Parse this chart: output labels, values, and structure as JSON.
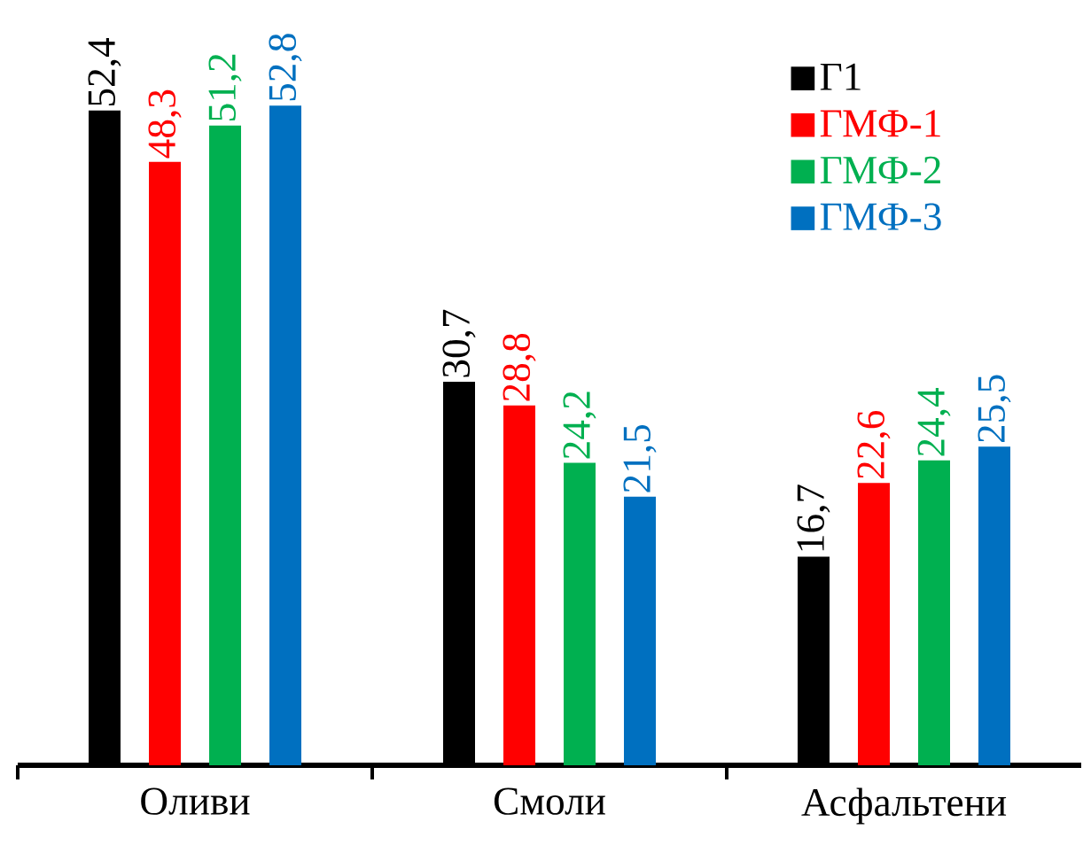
{
  "chart_data": {
    "type": "bar",
    "categories": [
      "Оливи",
      "Смоли",
      "Асфальтени"
    ],
    "series": [
      {
        "name": "Г1",
        "color": "#000000",
        "values": [
          52.4,
          30.7,
          16.7
        ],
        "value_labels": [
          "52,4",
          "30,7",
          "16,7"
        ]
      },
      {
        "name": "ГМФ-1",
        "color": "#ff0000",
        "values": [
          48.3,
          28.8,
          22.6
        ],
        "value_labels": [
          "48,3",
          "28,8",
          "22,6"
        ]
      },
      {
        "name": "ГМФ-2",
        "color": "#00b050",
        "values": [
          51.2,
          24.2,
          24.4
        ],
        "value_labels": [
          "51,2",
          "24,2",
          "24,4"
        ]
      },
      {
        "name": "ГМФ-3",
        "color": "#0070c0",
        "values": [
          52.8,
          21.5,
          25.5
        ],
        "value_labels": [
          "52,8",
          "21,5",
          "25,5"
        ]
      }
    ],
    "legend": "top right"
  }
}
